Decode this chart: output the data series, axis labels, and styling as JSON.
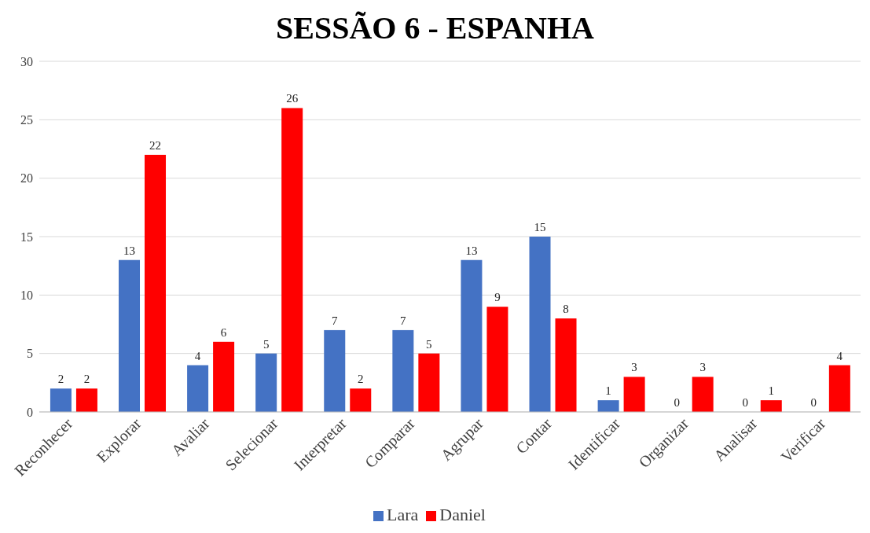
{
  "chart_data": {
    "type": "bar",
    "title": "SESSÃO 6 - ESPANHA",
    "categories": [
      "Reconhecer",
      "Explorar",
      "Avaliar",
      "Selecionar",
      "Interpretar",
      "Comparar",
      "Agrupar",
      "Contar",
      "Identificar",
      "Organizar",
      "Analisar",
      "Verificar"
    ],
    "series": [
      {
        "name": "Lara",
        "color": "#4472c4",
        "values": [
          2,
          13,
          4,
          5,
          7,
          7,
          13,
          15,
          1,
          0,
          0,
          0
        ]
      },
      {
        "name": "Daniel",
        "color": "#ff0000",
        "values": [
          2,
          22,
          6,
          26,
          2,
          5,
          9,
          8,
          3,
          3,
          1,
          4
        ]
      }
    ],
    "ylim": [
      0,
      30
    ],
    "yticks": [
      0,
      5,
      10,
      15,
      20,
      25,
      30
    ],
    "grid": "y",
    "legend": "bottom",
    "data_labels": true
  }
}
